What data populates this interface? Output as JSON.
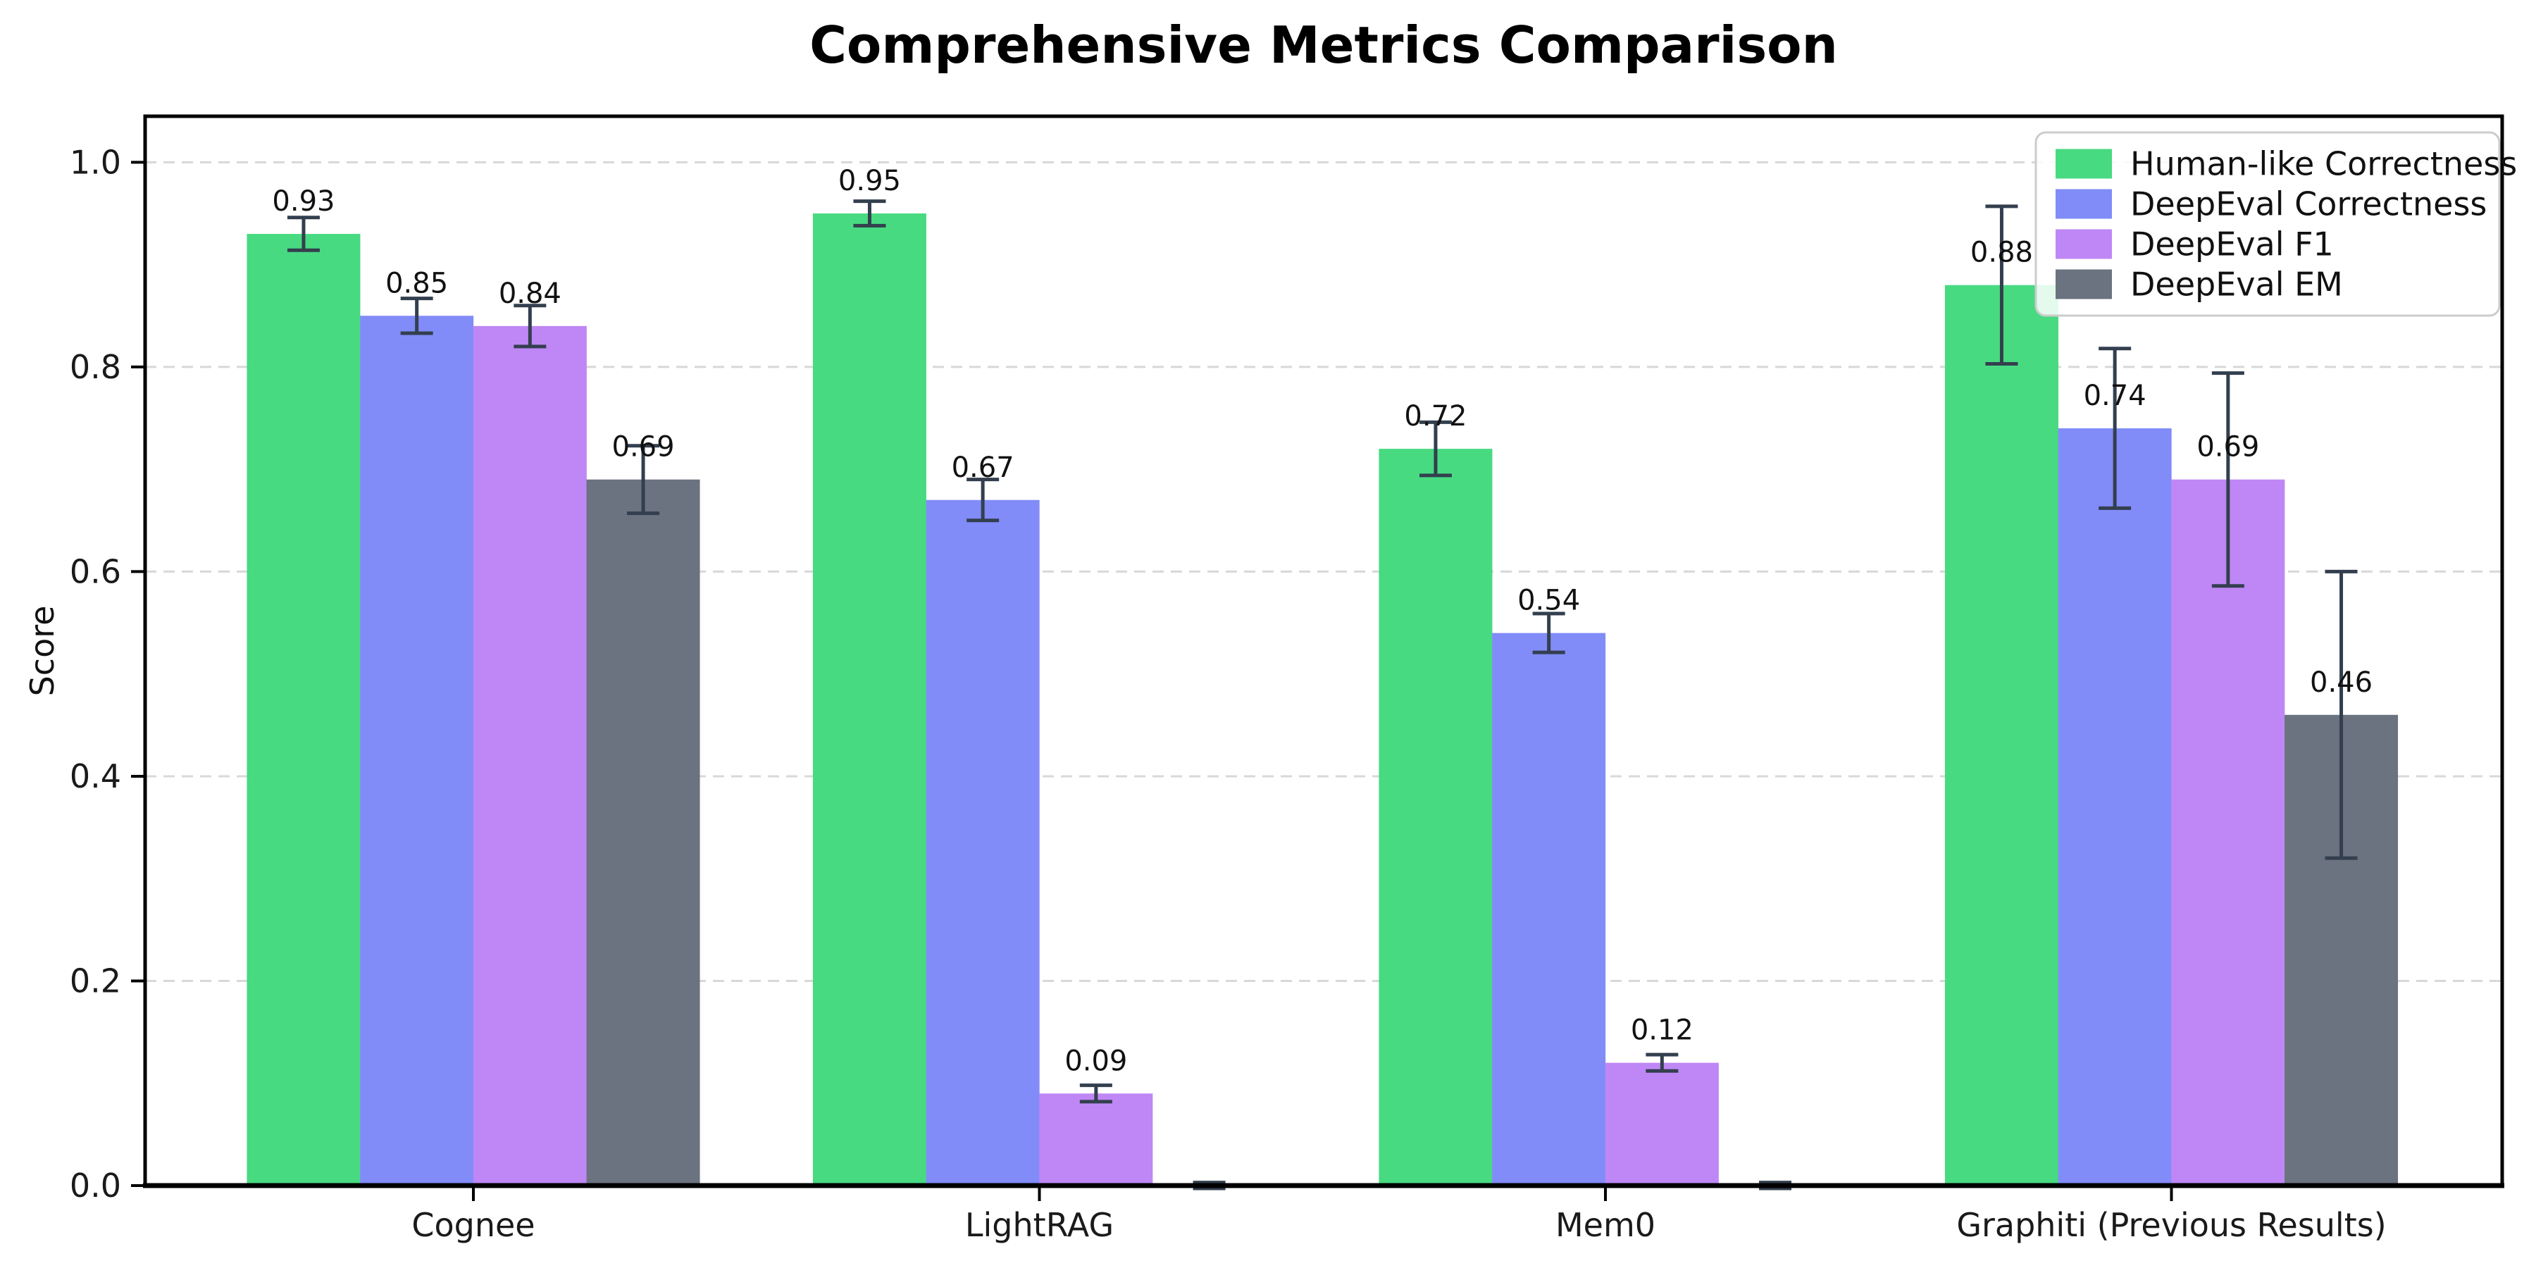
{
  "chart_data": {
    "type": "bar",
    "title": "Comprehensive Metrics Comparison",
    "ylabel": "Score",
    "xlabel": "",
    "categories": [
      "Cognee",
      "LightRAG",
      "Mem0",
      "Graphiti (Previous Results)"
    ],
    "series": [
      {
        "name": "Human-like Correctness",
        "color": "#48da81",
        "values": [
          0.93,
          0.95,
          0.72,
          0.88
        ],
        "errors": [
          0.016,
          0.012,
          0.026,
          0.077
        ],
        "value_labels": [
          "0.93",
          "0.95",
          "0.72",
          "0.88"
        ]
      },
      {
        "name": "DeepEval Correctness",
        "color": "#818cf8",
        "values": [
          0.85,
          0.67,
          0.54,
          0.74
        ],
        "errors": [
          0.017,
          0.02,
          0.019,
          0.078
        ],
        "value_labels": [
          "0.85",
          "0.67",
          "0.54",
          "0.74"
        ]
      },
      {
        "name": "DeepEval F1",
        "color": "#bf87f5",
        "values": [
          0.84,
          0.09,
          0.12,
          0.69
        ],
        "errors": [
          0.02,
          0.008,
          0.008,
          0.104
        ],
        "value_labels": [
          "0.84",
          "0.09",
          "0.12",
          "0.69"
        ]
      },
      {
        "name": "DeepEval EM",
        "color": "#6b7280",
        "values": [
          0.69,
          0.0,
          0.0,
          0.46
        ],
        "errors": [
          0.033,
          0.003,
          0.003,
          0.14
        ],
        "value_labels": [
          "0.69",
          "",
          "",
          "0.46"
        ]
      }
    ],
    "yticks": [
      0.0,
      0.2,
      0.4,
      0.6,
      0.8,
      1.0
    ],
    "ytick_labels": [
      "0.0",
      "0.2",
      "0.4",
      "0.6",
      "0.8",
      "1.0"
    ],
    "ylim": [
      0,
      1.045
    ],
    "grid": "horizontal-dashed",
    "legend_position": "upper right",
    "colors": {
      "error_bar": "#333f4e",
      "grid_line": "#d8d8d8",
      "axis": "#000000",
      "tick_text": "#1a1a1a",
      "legend_border": "#cccccc",
      "legend_background": "rgba(255,255,255,0.85)"
    }
  }
}
